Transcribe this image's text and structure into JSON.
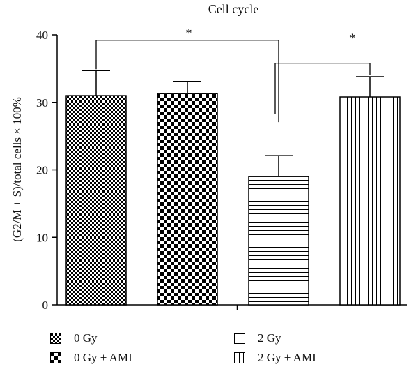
{
  "chart_data": {
    "type": "bar",
    "title": "Cell cycle",
    "ylabel": "(G2/M + S)/total cells × 100%",
    "xlabel": "",
    "ylim": [
      0,
      40
    ],
    "yticks": [
      0,
      10,
      20,
      30,
      40
    ],
    "categories": [
      "0 Gy",
      "0 Gy + AMI",
      "2 Gy",
      "2 Gy + AMI"
    ],
    "values": [
      31,
      31.3,
      19,
      30.8
    ],
    "errors": [
      3.7,
      1.8,
      3.1,
      3.0
    ],
    "patterns": [
      "fine-checker",
      "checker",
      "horizontal-lines",
      "vertical-lines"
    ],
    "significance": [
      {
        "from": 0,
        "to": 2,
        "label": "*"
      },
      {
        "from": 2,
        "to": 3,
        "label": "*"
      }
    ],
    "legend": [
      "0 Gy",
      "0 Gy + AMI",
      "2 Gy",
      "2 Gy + AMI"
    ],
    "legend_position": "bottom"
  }
}
